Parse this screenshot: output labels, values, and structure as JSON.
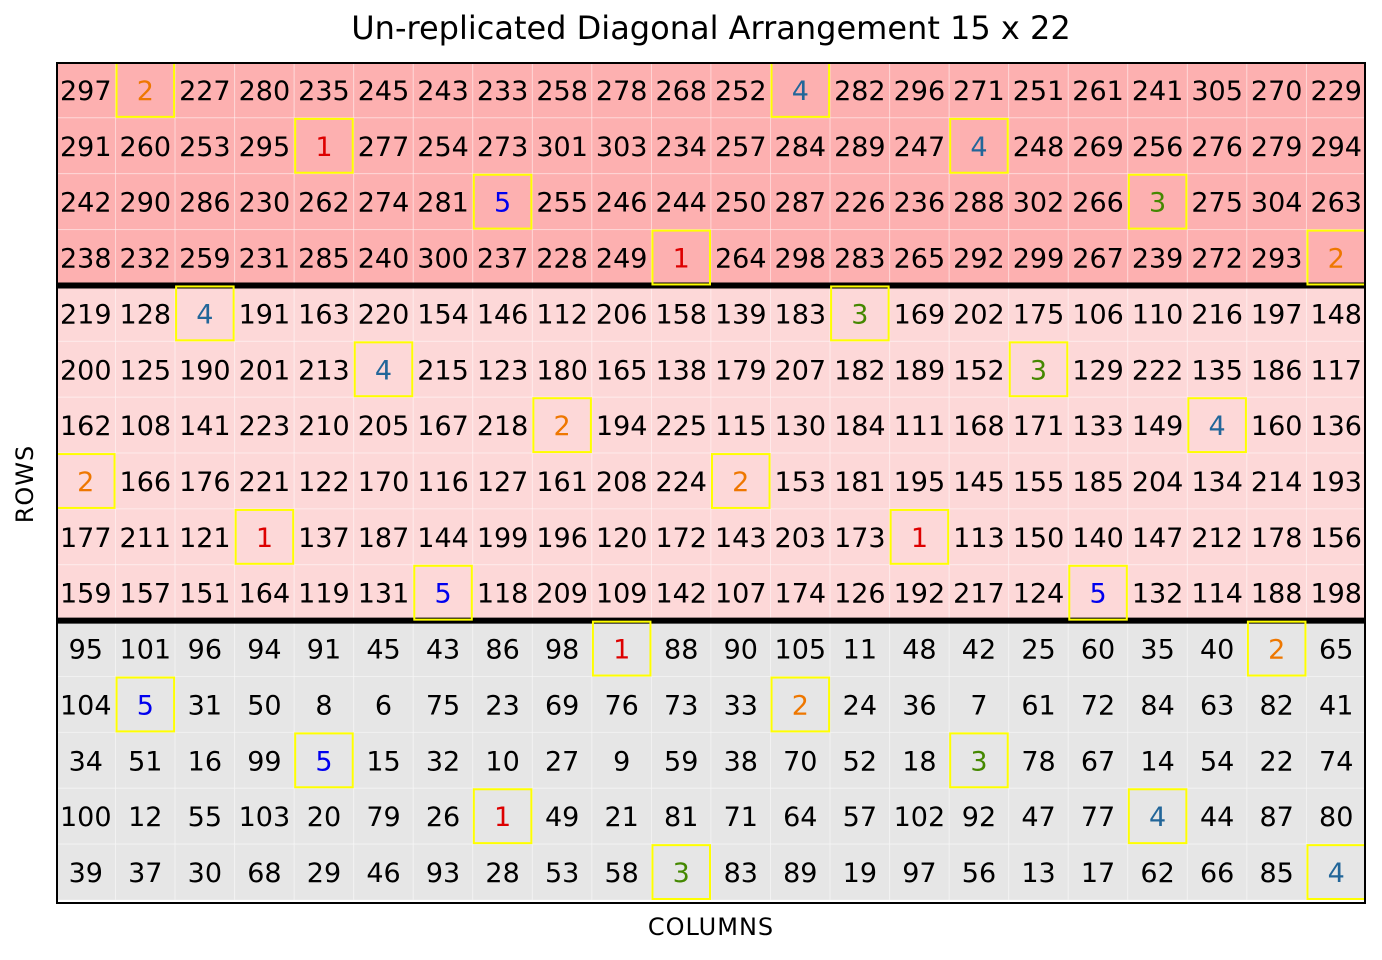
{
  "chart_data": {
    "type": "heatmap",
    "title": "Un-replicated Diagonal Arrangement 15 x 22",
    "xlabel": "COLUMNS",
    "ylabel": "ROWS",
    "n_rows": 15,
    "n_cols": 22,
    "grid": true,
    "block_dividers_after_row": [
      4,
      10
    ],
    "block_colors": [
      "#fdb0b0",
      "#fdd8d8",
      "#e6e6e6"
    ],
    "block_rows": [
      [
        1,
        4
      ],
      [
        5,
        10
      ],
      [
        11,
        15
      ]
    ],
    "check_border_color": "#ffff00",
    "check_colors": {
      "1": "#dd0000",
      "2": "#ee7700",
      "3": "#448800",
      "4": "#226699",
      "5": "#0000ee"
    },
    "values": [
      [
        297,
        2,
        227,
        280,
        235,
        245,
        243,
        233,
        258,
        278,
        268,
        252,
        4,
        282,
        296,
        271,
        251,
        261,
        241,
        305,
        270,
        229
      ],
      [
        291,
        260,
        253,
        295,
        1,
        277,
        254,
        273,
        301,
        303,
        234,
        257,
        284,
        289,
        247,
        4,
        248,
        269,
        256,
        276,
        279,
        294
      ],
      [
        242,
        290,
        286,
        230,
        262,
        274,
        281,
        5,
        255,
        246,
        244,
        250,
        287,
        226,
        236,
        288,
        302,
        266,
        3,
        275,
        304,
        263
      ],
      [
        238,
        232,
        259,
        231,
        285,
        240,
        300,
        237,
        228,
        249,
        1,
        264,
        298,
        283,
        265,
        292,
        299,
        267,
        239,
        272,
        293,
        2
      ],
      [
        219,
        128,
        4,
        191,
        163,
        220,
        154,
        146,
        112,
        206,
        158,
        139,
        183,
        3,
        169,
        202,
        175,
        106,
        110,
        216,
        197,
        148
      ],
      [
        200,
        125,
        190,
        201,
        213,
        4,
        215,
        123,
        180,
        165,
        138,
        179,
        207,
        182,
        189,
        152,
        3,
        129,
        222,
        135,
        186,
        117
      ],
      [
        162,
        108,
        141,
        223,
        210,
        205,
        167,
        218,
        2,
        194,
        225,
        115,
        130,
        184,
        111,
        168,
        171,
        133,
        149,
        4,
        160,
        136
      ],
      [
        2,
        166,
        176,
        221,
        122,
        170,
        116,
        127,
        161,
        208,
        224,
        2,
        153,
        181,
        195,
        145,
        155,
        185,
        204,
        134,
        214,
        193
      ],
      [
        177,
        211,
        121,
        1,
        137,
        187,
        144,
        199,
        196,
        120,
        172,
        143,
        203,
        173,
        1,
        113,
        150,
        140,
        147,
        212,
        178,
        156
      ],
      [
        159,
        157,
        151,
        164,
        119,
        131,
        5,
        118,
        209,
        109,
        142,
        107,
        174,
        126,
        192,
        217,
        124,
        5,
        132,
        114,
        188,
        198
      ],
      [
        95,
        101,
        96,
        94,
        91,
        45,
        43,
        86,
        98,
        1,
        88,
        90,
        105,
        11,
        48,
        42,
        25,
        60,
        35,
        40,
        2,
        65
      ],
      [
        104,
        5,
        31,
        50,
        8,
        6,
        75,
        23,
        69,
        76,
        73,
        33,
        2,
        24,
        36,
        7,
        61,
        72,
        84,
        63,
        82,
        41
      ],
      [
        34,
        51,
        16,
        99,
        5,
        15,
        32,
        10,
        27,
        9,
        59,
        38,
        70,
        52,
        18,
        3,
        78,
        67,
        14,
        54,
        22,
        74
      ],
      [
        100,
        12,
        55,
        103,
        20,
        79,
        26,
        1,
        49,
        21,
        81,
        71,
        64,
        57,
        102,
        92,
        47,
        77,
        4,
        44,
        87,
        80
      ],
      [
        39,
        37,
        30,
        68,
        29,
        46,
        93,
        28,
        53,
        58,
        3,
        83,
        89,
        19,
        97,
        56,
        13,
        17,
        62,
        66,
        85,
        4
      ]
    ],
    "checks": [
      {
        "row": 1,
        "col": 2,
        "value": 2
      },
      {
        "row": 1,
        "col": 13,
        "value": 4
      },
      {
        "row": 2,
        "col": 5,
        "value": 1
      },
      {
        "row": 2,
        "col": 16,
        "value": 4
      },
      {
        "row": 3,
        "col": 8,
        "value": 5
      },
      {
        "row": 3,
        "col": 19,
        "value": 3
      },
      {
        "row": 4,
        "col": 11,
        "value": 1
      },
      {
        "row": 4,
        "col": 22,
        "value": 2
      },
      {
        "row": 5,
        "col": 3,
        "value": 4
      },
      {
        "row": 5,
        "col": 14,
        "value": 3
      },
      {
        "row": 6,
        "col": 6,
        "value": 4
      },
      {
        "row": 6,
        "col": 17,
        "value": 3
      },
      {
        "row": 7,
        "col": 9,
        "value": 2
      },
      {
        "row": 7,
        "col": 20,
        "value": 4
      },
      {
        "row": 8,
        "col": 1,
        "value": 2
      },
      {
        "row": 8,
        "col": 12,
        "value": 2
      },
      {
        "row": 9,
        "col": 4,
        "value": 1
      },
      {
        "row": 9,
        "col": 15,
        "value": 1
      },
      {
        "row": 10,
        "col": 7,
        "value": 5
      },
      {
        "row": 10,
        "col": 18,
        "value": 5
      },
      {
        "row": 11,
        "col": 10,
        "value": 1
      },
      {
        "row": 11,
        "col": 21,
        "value": 2
      },
      {
        "row": 12,
        "col": 2,
        "value": 5
      },
      {
        "row": 12,
        "col": 13,
        "value": 2
      },
      {
        "row": 13,
        "col": 5,
        "value": 5
      },
      {
        "row": 13,
        "col": 16,
        "value": 3
      },
      {
        "row": 14,
        "col": 8,
        "value": 1
      },
      {
        "row": 14,
        "col": 19,
        "value": 4
      },
      {
        "row": 15,
        "col": 11,
        "value": 3
      },
      {
        "row": 15,
        "col": 22,
        "value": 4
      }
    ]
  }
}
